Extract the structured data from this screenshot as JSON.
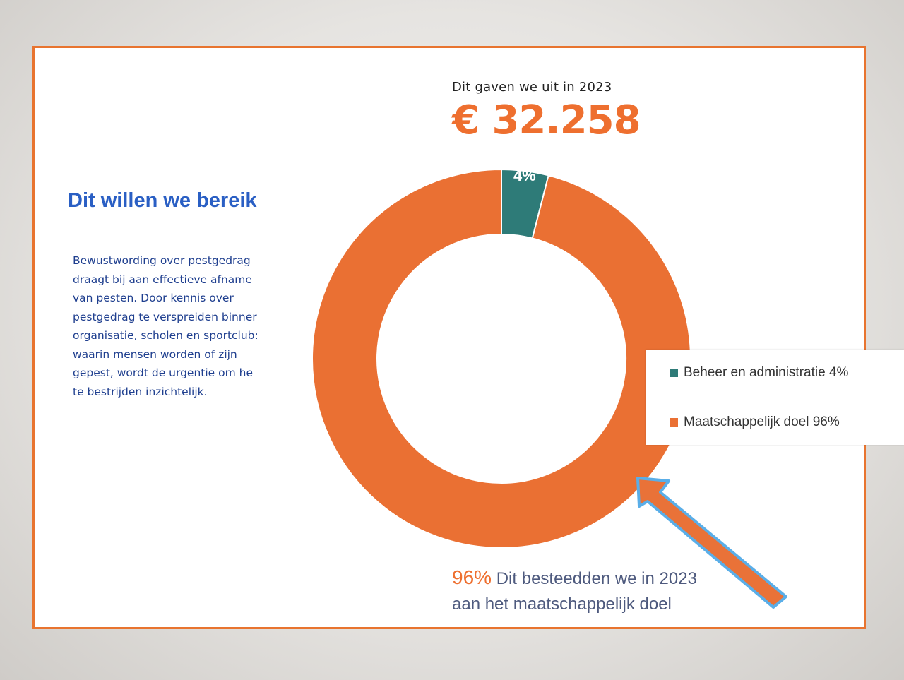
{
  "spend": {
    "caption": "Dit gaven we uit in 2023",
    "amount": "€ 32.258"
  },
  "left_panel": {
    "heading": "Dit willen we bereik",
    "lines": [
      "Bewustwording over pestgedrag",
      "draagt bij aan effectieve afname",
      "van pesten. Door kennis over",
      "pestgedrag te verspreiden binner",
      "organisatie, scholen en sportclub:",
      "waarin mensen worden of zijn",
      "gepest, wordt de urgentie om he",
      "te bestrijden inzichtelijk."
    ]
  },
  "chart_data": {
    "type": "pie",
    "categories": [
      "Beheer en administratie",
      "Maatschappelijk doel"
    ],
    "values": [
      4,
      96
    ],
    "colors": [
      "#2e7b78",
      "#ea7033"
    ],
    "data_labels": [
      "4%",
      ""
    ],
    "legend": [
      "Beheer en administratie 4%",
      "Maatschappelijk doel 96%"
    ],
    "legend_position": "right",
    "donut": true
  },
  "bottom_note": {
    "percent": "96%",
    "line1": " Dit besteedden we in 2023",
    "line2": "aan het maatschappelijk doel"
  },
  "colors": {
    "accent": "#ee6f2f",
    "frame": "#e8742f",
    "heading_blue": "#2a5fc4",
    "body_blue": "#1f3f8f",
    "note_text": "#4e5a7e",
    "arrow_outline": "#5aaee8"
  }
}
